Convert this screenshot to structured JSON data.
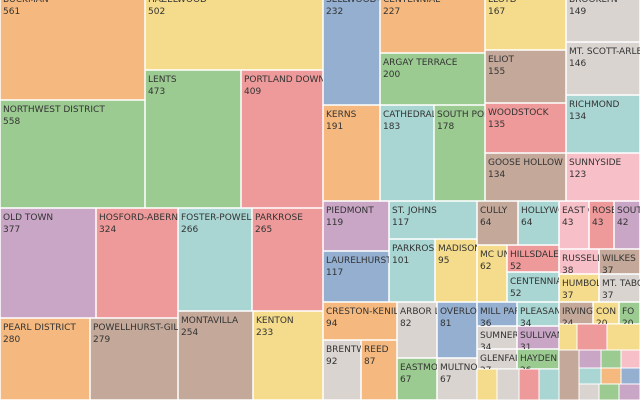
{
  "chart_data": {
    "type": "treemap",
    "categories": [
      "BUCKMAN",
      "NORTHWEST DISTRICT",
      "OLD TOWN",
      "HOSFORD-ABERNETHY",
      "PEARL DISTRICT",
      "POWELLHURST-GILBERT",
      "HAZELWOOD",
      "LENTS",
      "PORTLAND DOWNTOWN",
      "FOSTER-POWELL",
      "PARKROSE",
      "MONTAVILLA",
      "KENTON",
      "SELLWOOD-M",
      "CENTENNIAL",
      "ARGAY TERRACE",
      "KERNS",
      "CATHEDRAL P",
      "SOUTH PORT",
      "LLOYD",
      "ELIOT",
      "WOODSTOCK",
      "GOOSE HOLLOW",
      "BROOKLYN",
      "MT. SCOTT-ARLETA",
      "RICHMOND",
      "SUNNYSIDE",
      "PIEDMONT",
      "ST. JOHNS",
      "LAURELHURST",
      "PARKROSE",
      "MADISON",
      "CULLY",
      "HOLLYWO",
      "MC UN",
      "HILLSDALE",
      "CENTENNIA",
      "EAST C",
      "ROSE",
      "SOUT",
      "RUSSELL",
      "WILKES",
      "HUMBOL",
      "MT. TABO",
      "CRESTON-KENILW",
      "BRENTW",
      "REED",
      "ARBOR LO",
      "OVERLO",
      "EASTMOR",
      "MULTNO",
      "MILL PAR",
      "PLEASAN",
      "SUMNER",
      "SULLIVAN",
      "GLENFAIR",
      "HAYDEN",
      "IRVINGT",
      "CON",
      "FO"
    ],
    "values": [
      561,
      558,
      377,
      324,
      280,
      279,
      502,
      473,
      409,
      266,
      265,
      254,
      233,
      232,
      227,
      200,
      191,
      183,
      178,
      167,
      155,
      135,
      134,
      149,
      146,
      134,
      123,
      119,
      117,
      117,
      101,
      95,
      64,
      64,
      62,
      52,
      52,
      43,
      43,
      42,
      38,
      37,
      37,
      37,
      94,
      92,
      87,
      82,
      81,
      67,
      67,
      36,
      34,
      34,
      31,
      27,
      26,
      24,
      20,
      20
    ],
    "colors": [
      "#f5b97f",
      "#9ccb92",
      "#c9a6c6",
      "#ee9a9a",
      "#f5b97f",
      "#c4a99a",
      "#f5dc8c",
      "#9ccb92",
      "#ee9a9a",
      "#a9d6d3",
      "#ee9a9a",
      "#c4a99a",
      "#f5dc8c",
      "#94afd0",
      "#f5b97f",
      "#9ccb92",
      "#f5b97f",
      "#a9d6d3",
      "#9ccb92",
      "#f5dc8c",
      "#c4a99a",
      "#ee9a9a",
      "#c4a99a",
      "#d9d4d0",
      "#d9d4d0",
      "#a9d6d3",
      "#f7c0c8",
      "#c9a6c6",
      "#a9d6d3",
      "#94afd0",
      "#a9d6d3",
      "#f5dc8c",
      "#c4a99a",
      "#a9d6d3",
      "#f5dc8c",
      "#ee9a9a",
      "#a9d6d3",
      "#f7c0c8",
      "#ee9a9a",
      "#c9a6c6",
      "#f7c0c8",
      "#c4a99a",
      "#f5dc8c",
      "#d9d4d0",
      "#f5b97f",
      "#d9d4d0",
      "#f5b97f",
      "#d9d4d0",
      "#94afd0",
      "#9ccb92",
      "#d9d4d0",
      "#94afd0",
      "#a9d6d3",
      "#d9d4d0",
      "#c9a6c6",
      "#d9d4d0",
      "#9ccb92",
      "#c4a99a",
      "#f5dc8c",
      "#9ccb92"
    ]
  }
}
